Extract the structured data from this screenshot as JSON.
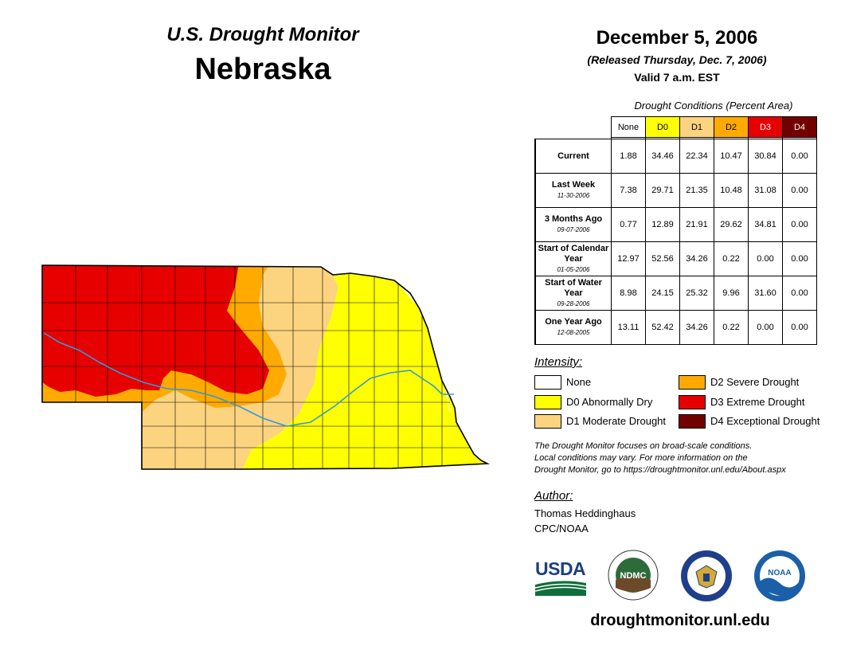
{
  "header": {
    "monitor_title": "U.S. Drought Monitor",
    "state": "Nebraska",
    "date": "December 5, 2006",
    "released": "(Released Thursday, Dec. 7, 2006)",
    "valid": "Valid 7 a.m. EST"
  },
  "table": {
    "caption": "Drought Conditions (Percent Area)",
    "columns": [
      "None",
      "D0",
      "D1",
      "D2",
      "D3",
      "D4"
    ],
    "column_colors": [
      "#ffffff",
      "#ffff00",
      "#fcd37f",
      "#ffaa00",
      "#e60000",
      "#730000"
    ],
    "rows": [
      {
        "label": "Current",
        "date": "",
        "values": [
          "1.88",
          "34.46",
          "22.34",
          "10.47",
          "30.84",
          "0.00"
        ]
      },
      {
        "label": "Last Week",
        "date": "11-30-2006",
        "values": [
          "7.38",
          "29.71",
          "21.35",
          "10.48",
          "31.08",
          "0.00"
        ]
      },
      {
        "label": "3 Months Ago",
        "date": "09-07-2006",
        "values": [
          "0.77",
          "12.89",
          "21.91",
          "29.62",
          "34.81",
          "0.00"
        ]
      },
      {
        "label": "Start of Calendar Year",
        "date": "01-05-2006",
        "values": [
          "12.97",
          "52.56",
          "34.26",
          "0.22",
          "0.00",
          "0.00"
        ]
      },
      {
        "label": "Start of Water Year",
        "date": "09-28-2006",
        "values": [
          "8.98",
          "24.15",
          "25.32",
          "9.96",
          "31.60",
          "0.00"
        ]
      },
      {
        "label": "One Year Ago",
        "date": "12-08-2005",
        "values": [
          "13.11",
          "52.42",
          "34.26",
          "0.22",
          "0.00",
          "0.00"
        ]
      }
    ]
  },
  "legend": {
    "title": "Intensity:",
    "items": [
      {
        "label": "None",
        "color": "#ffffff"
      },
      {
        "label": "D0 Abnormally Dry",
        "color": "#ffff00"
      },
      {
        "label": "D1 Moderate Drought",
        "color": "#fcd37f"
      },
      {
        "label": "D2 Severe Drought",
        "color": "#ffaa00"
      },
      {
        "label": "D3 Extreme Drought",
        "color": "#e60000"
      },
      {
        "label": "D4 Exceptional Drought",
        "color": "#730000"
      }
    ]
  },
  "note": {
    "line1": "The Drought Monitor focuses on broad-scale conditions.",
    "line2": "Local conditions may vary. For more information on the",
    "line3": "Drought Monitor, go to https://droughtmonitor.unl.edu/About.aspx"
  },
  "author": {
    "label": "Author:",
    "name": "Thomas Heddinghaus",
    "org": "CPC/NOAA"
  },
  "logos": {
    "usda": "USDA",
    "ndmc": "NDMC",
    "noaa": "NOAA"
  },
  "footer": {
    "site": "droughtmonitor.unl.edu"
  },
  "map": {
    "river_color": "#3399dd"
  }
}
